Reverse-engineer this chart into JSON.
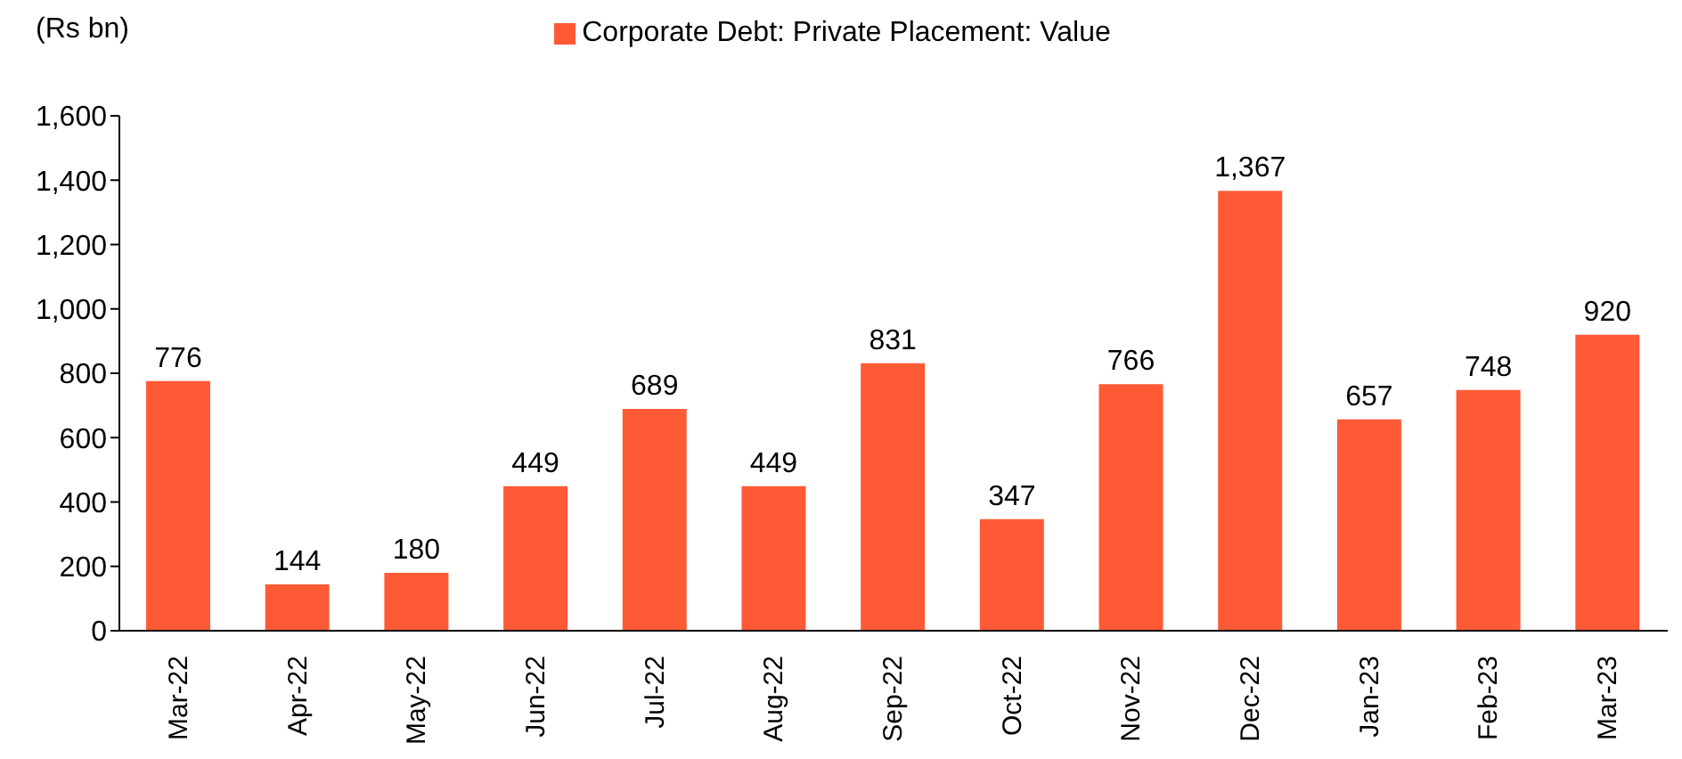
{
  "chart_data": {
    "type": "bar",
    "ylabel": "(Rs bn)",
    "categories": [
      "Mar-22",
      "Apr-22",
      "May-22",
      "Jun-22",
      "Jul-22",
      "Aug-22",
      "Sep-22",
      "Oct-22",
      "Nov-22",
      "Dec-22",
      "Jan-23",
      "Feb-23",
      "Mar-23"
    ],
    "series": [
      {
        "name": "Corporate Debt: Private Placement: Value",
        "color": "#ff5a36",
        "values": [
          776,
          144,
          180,
          449,
          689,
          449,
          831,
          347,
          766,
          1367,
          657,
          748,
          920
        ]
      }
    ],
    "ylim": [
      0,
      1600
    ],
    "yticks": [
      0,
      {
        "value": 200,
        "label": "200"
      },
      {
        "value": 400,
        "label": "400"
      },
      {
        "value": 600,
        "label": "600"
      },
      {
        "value": 800,
        "label": "800"
      },
      {
        "value": 1000,
        "label": "1,000"
      },
      {
        "value": 1200,
        "label": "1,200"
      },
      {
        "value": 1400,
        "label": "1,400"
      },
      {
        "value": 1600,
        "label": "1,600"
      }
    ],
    "value_labels": [
      "776",
      "144",
      "180",
      "449",
      "689",
      "449",
      "831",
      "347",
      "766",
      "1,367",
      "657",
      "748",
      "920"
    ],
    "grid": false,
    "legend": "top"
  }
}
